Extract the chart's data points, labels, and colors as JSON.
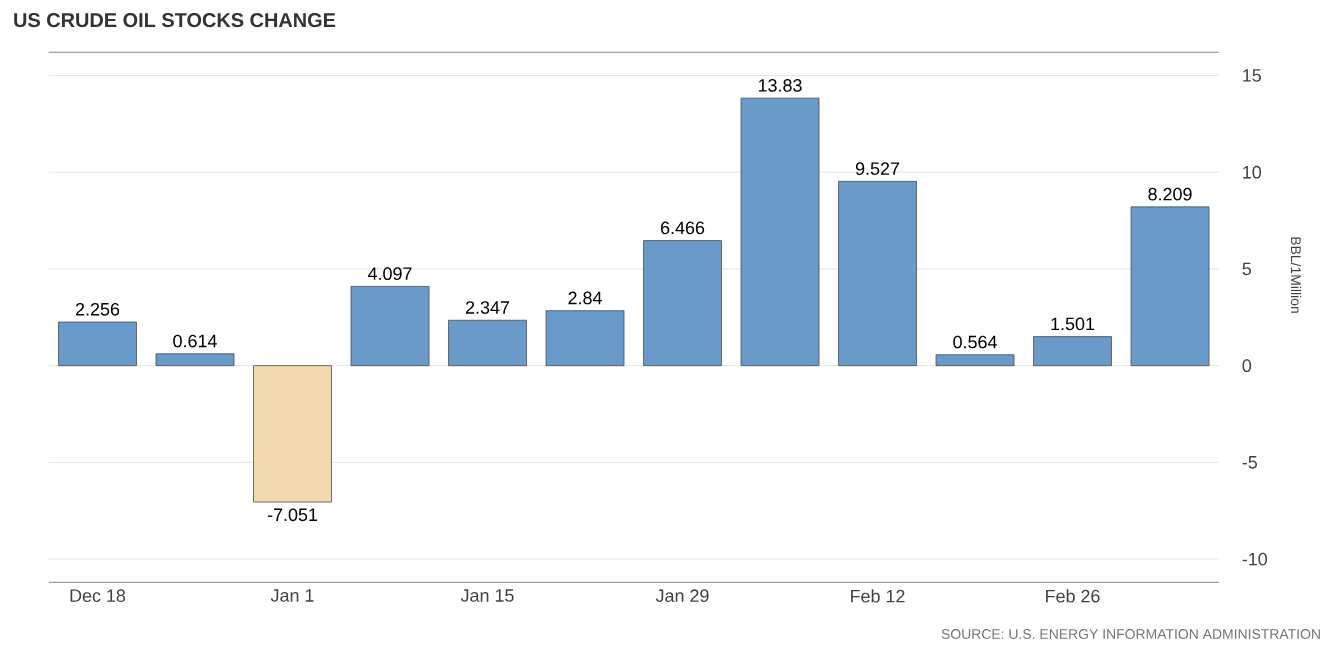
{
  "chart_data": {
    "type": "bar",
    "title": "US CRUDE OIL STOCKS CHANGE",
    "ylabel": "BBL/1Million",
    "categories": [
      "Dec 18",
      null,
      "Jan 1",
      null,
      "Jan 15",
      null,
      "Jan 29",
      null,
      "Feb 12",
      null,
      "Feb 26",
      null
    ],
    "values": [
      2.256,
      0.614,
      -7.051,
      4.097,
      2.347,
      2.84,
      6.466,
      13.83,
      9.527,
      0.564,
      1.501,
      8.209
    ],
    "colors": [
      "#6a9ac9",
      "#6a9ac9",
      "#f2d9ae",
      "#6a9ac9",
      "#6a9ac9",
      "#6a9ac9",
      "#6a9ac9",
      "#6a9ac9",
      "#6a9ac9",
      "#6a9ac9",
      "#6a9ac9",
      "#6a9ac9"
    ],
    "ylim": [
      -11.2,
      16.2
    ],
    "yticks": [
      -10,
      -5,
      0,
      5,
      10,
      15
    ],
    "grid": "y",
    "data_labels": true,
    "annotations": [
      "SOURCE: U.S. ENERGY INFORMATION ADMINISTRATION"
    ]
  }
}
